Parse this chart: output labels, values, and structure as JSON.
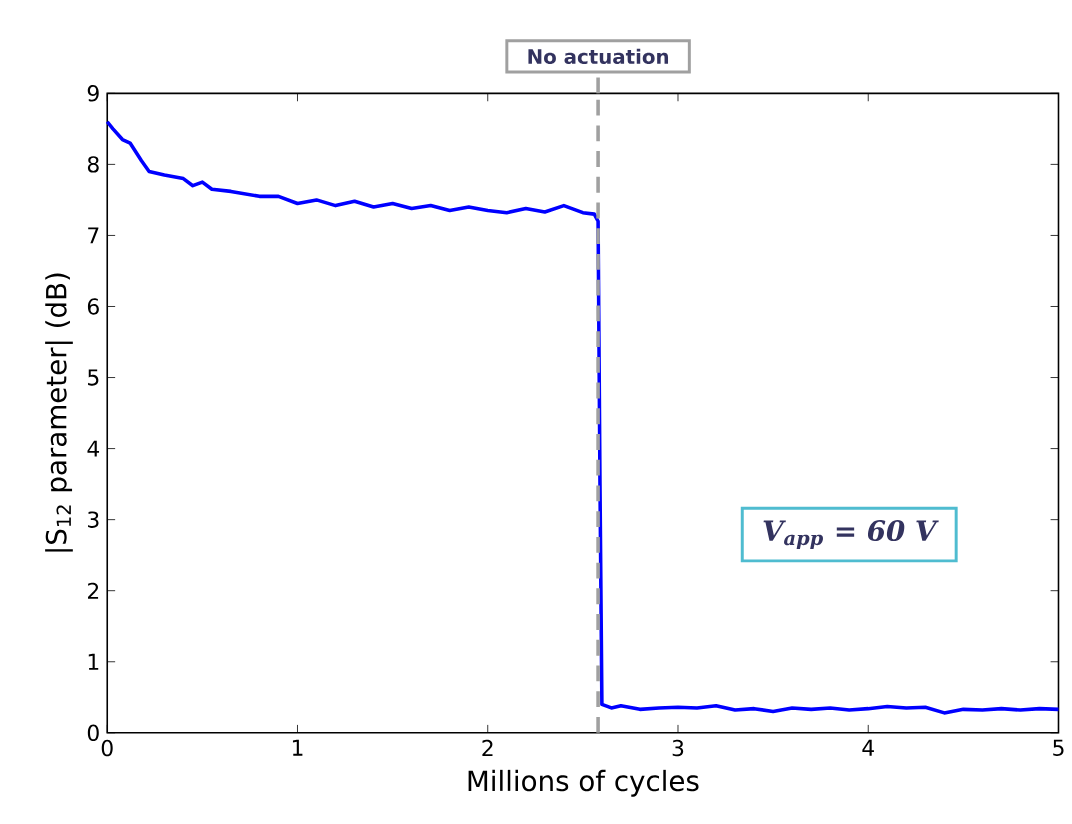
{
  "chart_data": {
    "type": "line",
    "xlabel": "Millions of cycles",
    "ylabel": "|S$_{12}$ parameter| (dB)",
    "xlim": [
      0,
      5
    ],
    "ylim": [
      0,
      9
    ],
    "xticks": [
      0,
      1,
      2,
      3,
      4,
      5
    ],
    "yticks": [
      0,
      1,
      2,
      3,
      4,
      5,
      6,
      7,
      8,
      9
    ],
    "grid": false,
    "marker": "none",
    "line_style": "solid",
    "x": [
      0,
      0.03,
      0.08,
      0.12,
      0.18,
      0.22,
      0.3,
      0.4,
      0.45,
      0.5,
      0.55,
      0.65,
      0.8,
      0.9,
      1.0,
      1.1,
      1.2,
      1.3,
      1.4,
      1.5,
      1.6,
      1.7,
      1.8,
      1.9,
      2.0,
      2.1,
      2.2,
      2.3,
      2.4,
      2.5,
      2.56,
      2.58,
      2.59,
      2.6,
      2.65,
      2.7,
      2.8,
      2.9,
      3.0,
      3.1,
      3.2,
      3.3,
      3.4,
      3.5,
      3.6,
      3.7,
      3.8,
      3.9,
      4.0,
      4.1,
      4.2,
      4.3,
      4.4,
      4.5,
      4.6,
      4.7,
      4.8,
      4.9,
      5.0
    ],
    "series": [
      {
        "color": "#0000ff",
        "values": [
          8.6,
          8.5,
          8.35,
          8.3,
          8.05,
          7.9,
          7.85,
          7.8,
          7.7,
          7.75,
          7.65,
          7.62,
          7.55,
          7.55,
          7.45,
          7.5,
          7.42,
          7.48,
          7.4,
          7.45,
          7.38,
          7.42,
          7.35,
          7.4,
          7.35,
          7.32,
          7.38,
          7.33,
          7.42,
          7.32,
          7.3,
          7.2,
          3.5,
          0.4,
          0.35,
          0.38,
          0.33,
          0.35,
          0.36,
          0.35,
          0.38,
          0.32,
          0.34,
          0.3,
          0.35,
          0.33,
          0.35,
          0.32,
          0.34,
          0.37,
          0.35,
          0.36,
          0.28,
          0.33,
          0.32,
          0.34,
          0.32,
          0.34,
          0.33
        ]
      }
    ],
    "ref_lines": [
      {
        "axis": "x",
        "value": 2.58,
        "label": "No actuation",
        "color": "#a0a0a0",
        "line_style": "dashed"
      }
    ],
    "annotations": [
      "V$_{app}$ = 60 V"
    ]
  }
}
